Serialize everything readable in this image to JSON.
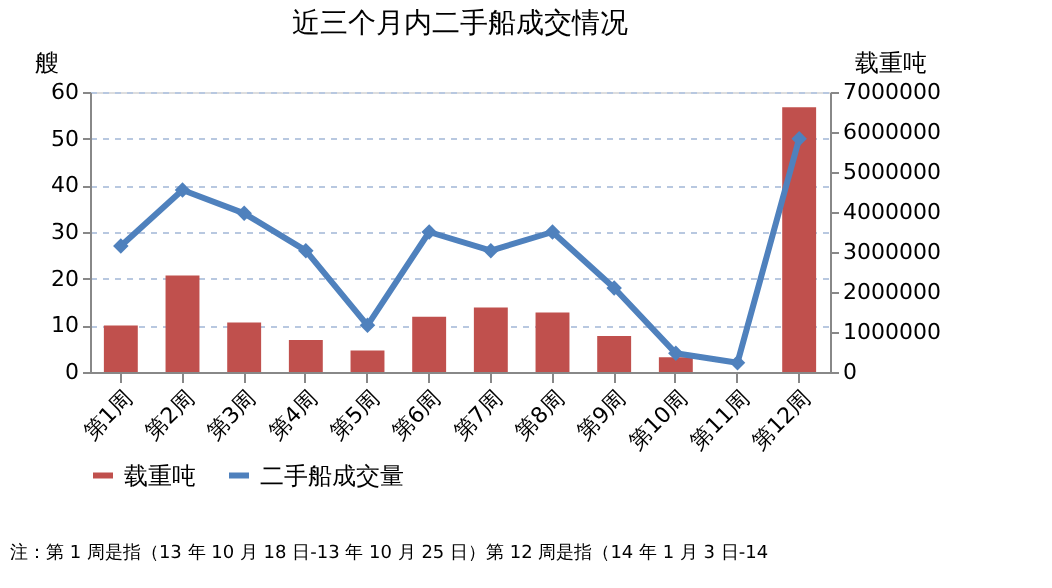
{
  "chart_data": {
    "type": "bar",
    "title": "近三个月内二手船成交情况",
    "ylabel": "艘",
    "y2label": "载重吨",
    "categories": [
      "第1周",
      "第2周",
      "第3周",
      "第4周",
      "第5周",
      "第6周",
      "第7周",
      "第8周",
      "第9周",
      "第10周",
      "第11周",
      "第12周"
    ],
    "series": [
      {
        "name": "载重吨",
        "axis": "y2",
        "color": "#c0504d",
        "values": [
          1160000,
          2410000,
          1240000,
          800000,
          540000,
          1380000,
          1610000,
          1490000,
          900000,
          370000,
          null,
          6620000
        ]
      },
      {
        "name": "二手船成交量",
        "type": "line",
        "color": "#4f81bd",
        "values": [
          27,
          39,
          34,
          26,
          10,
          30,
          26,
          30,
          18,
          4,
          2,
          50
        ]
      }
    ],
    "ylim": [
      0,
      60
    ],
    "yticks": [
      0,
      10,
      20,
      30,
      40,
      50,
      60
    ],
    "y2lim": [
      0,
      7000000
    ],
    "y2ticks": [
      0,
      1000000,
      2000000,
      3000000,
      4000000,
      5000000,
      6000000,
      7000000
    ],
    "grid": "y",
    "legend": "bottom",
    "marker": "diamond",
    "line_style": "solid",
    "annotations": [
      "注：第 1 周是指（13 年 10 月 18 日-13 年 10 月 25 日）第 12 周是指（14 年 1 月 3 日-14"
    ]
  }
}
